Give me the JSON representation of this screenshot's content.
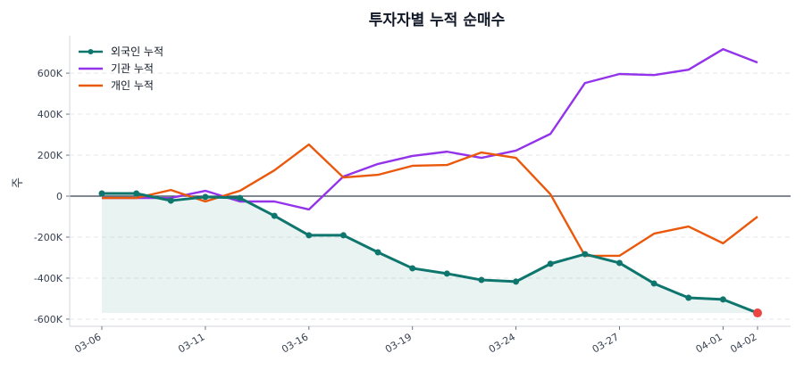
{
  "chart_data": {
    "type": "line",
    "title": "투자자별 누적 순매수",
    "ylabel": "주",
    "xlabel": "",
    "x": [
      "03-06",
      "03-09",
      "03-10",
      "03-11",
      "03-12",
      "03-13",
      "03-16",
      "03-17",
      "03-18",
      "03-19",
      "03-20",
      "03-23",
      "03-24",
      "03-25",
      "03-26",
      "03-27",
      "03-30",
      "03-31",
      "04-01",
      "04-02"
    ],
    "xticks": [
      "03-06",
      "03-11",
      "03-16",
      "03-19",
      "03-24",
      "03-27",
      "04-01",
      "04-02"
    ],
    "yticks": [
      -600000,
      -400000,
      -200000,
      0,
      200000,
      400000,
      600000
    ],
    "ytick_labels": [
      "-600K",
      "-400K",
      "-200K",
      "0",
      "200K",
      "400K",
      "600K"
    ],
    "ylim": [
      -635000,
      783000
    ],
    "grid": "horizontal dashed",
    "legend": "top-left",
    "series": [
      {
        "name": "외국인 누적",
        "color": "#0f766e",
        "markers": true,
        "fill": true,
        "values": [
          13000,
          13000,
          -22000,
          -4000,
          -9000,
          -96000,
          -191000,
          -191000,
          -274000,
          -352000,
          -378000,
          -409000,
          -417000,
          -330000,
          -283000,
          -326000,
          -426000,
          -496000,
          -504000,
          -570000
        ]
      },
      {
        "name": "기관 누적",
        "color": "#9333ea",
        "values": [
          -9000,
          -9000,
          -9000,
          26000,
          -26000,
          -26000,
          -65000,
          96000,
          157000,
          196000,
          217000,
          187000,
          222000,
          304000,
          552000,
          596000,
          591000,
          617000,
          717000,
          652000
        ]
      },
      {
        "name": "개인 누적",
        "color": "#ea580c",
        "values": [
          -9000,
          -9000,
          30000,
          -26000,
          26000,
          126000,
          252000,
          91000,
          104000,
          148000,
          152000,
          213000,
          187000,
          9000,
          -291000,
          -291000,
          -183000,
          -148000,
          -230000,
          -100000
        ]
      }
    ],
    "highlight_last_point_color": "#ef4444"
  }
}
